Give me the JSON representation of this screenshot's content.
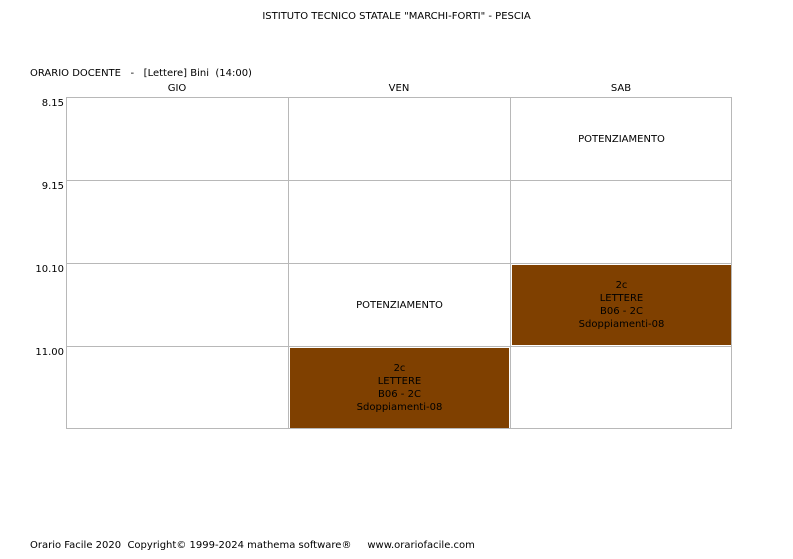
{
  "header": {
    "school": "ISTITUTO TECNICO STATALE \"MARCHI-FORTI\" - PESCIA",
    "teacher_line": "ORARIO DOCENTE   -   [Lettere] Bini  (14:00)"
  },
  "days": [
    "GIO",
    "VEN",
    "SAB"
  ],
  "times": [
    "8.15",
    "9.15",
    "10.10",
    "11.00"
  ],
  "cells": {
    "sab_0815": {
      "label": "POTENZIAMENTO"
    },
    "ven_1010": {
      "label": "POTENZIAMENTO"
    },
    "sab_1010": {
      "class": "2c",
      "subject": "LETTERE",
      "room": "B06 - 2C",
      "group": "Sdoppiamenti-08"
    },
    "ven_1100": {
      "class": "2c",
      "subject": "LETTERE",
      "room": "B06 - 2C",
      "group": "Sdoppiamenti-08"
    }
  },
  "colors": {
    "lesson_bg": "#7f4000",
    "grid_line": "#b8b8b8"
  },
  "footer": {
    "text": "Orario Facile 2020  Copyright© 1999-2024 mathema software®     www.orariofacile.com"
  }
}
